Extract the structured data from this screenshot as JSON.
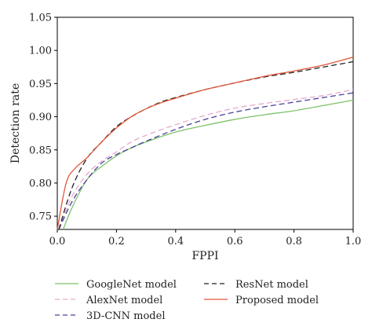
{
  "chart_data": {
    "type": "line",
    "title": "",
    "xlabel": "FPPI",
    "ylabel": "Detection rate",
    "xlim": [
      0.0,
      1.0
    ],
    "ylim": [
      0.73,
      1.05
    ],
    "x_ticks": [
      "0.0",
      "0.2",
      "0.4",
      "0.6",
      "0.8",
      "1.0"
    ],
    "y_ticks": [
      "0.75",
      "0.80",
      "0.85",
      "0.90",
      "0.95",
      "1.00",
      "1.05"
    ],
    "grid": false,
    "legend_position": "bottom",
    "series": [
      {
        "name": "GoogleNet model",
        "color": "#7cc26b",
        "dash": "solid",
        "x": [
          0.02,
          0.05,
          0.1,
          0.15,
          0.2,
          0.25,
          0.3,
          0.4,
          0.5,
          0.6,
          0.7,
          0.8,
          0.9,
          1.0
        ],
        "y": [
          0.73,
          0.763,
          0.805,
          0.825,
          0.841,
          0.853,
          0.862,
          0.877,
          0.887,
          0.896,
          0.903,
          0.909,
          0.917,
          0.925
        ]
      },
      {
        "name": "AlexNet model",
        "color": "#e7a9ce",
        "dash": "dashed",
        "x": [
          0.005,
          0.05,
          0.1,
          0.15,
          0.2,
          0.25,
          0.3,
          0.4,
          0.5,
          0.6,
          0.7,
          0.8,
          0.9,
          1.0
        ],
        "y": [
          0.73,
          0.78,
          0.813,
          0.833,
          0.847,
          0.862,
          0.872,
          0.888,
          0.902,
          0.913,
          0.92,
          0.926,
          0.932,
          0.941
        ]
      },
      {
        "name": "3D-CNN model",
        "color": "#4b3f9a",
        "dash": "dashed",
        "x": [
          0.005,
          0.05,
          0.1,
          0.15,
          0.2,
          0.25,
          0.3,
          0.4,
          0.5,
          0.6,
          0.7,
          0.8,
          0.9,
          1.0
        ],
        "y": [
          0.73,
          0.772,
          0.805,
          0.83,
          0.843,
          0.853,
          0.863,
          0.881,
          0.896,
          0.907,
          0.915,
          0.922,
          0.929,
          0.936
        ]
      },
      {
        "name": "ResNet model",
        "color": "#222222",
        "dash": "dashed",
        "x": [
          0.005,
          0.05,
          0.1,
          0.15,
          0.2,
          0.25,
          0.3,
          0.35,
          0.4,
          0.5,
          0.6,
          0.7,
          0.8,
          0.9,
          1.0
        ],
        "y": [
          0.73,
          0.793,
          0.837,
          0.862,
          0.885,
          0.9,
          0.912,
          0.922,
          0.929,
          0.941,
          0.951,
          0.96,
          0.967,
          0.975,
          0.983
        ]
      },
      {
        "name": "Proposed model",
        "color": "#e0573a",
        "dash": "solid",
        "x": [
          0.0,
          0.03,
          0.06,
          0.1,
          0.15,
          0.2,
          0.25,
          0.3,
          0.35,
          0.4,
          0.5,
          0.6,
          0.7,
          0.8,
          0.9,
          1.0
        ],
        "y": [
          0.73,
          0.8,
          0.822,
          0.838,
          0.862,
          0.883,
          0.9,
          0.912,
          0.921,
          0.928,
          0.941,
          0.951,
          0.961,
          0.969,
          0.978,
          0.99
        ]
      }
    ]
  }
}
